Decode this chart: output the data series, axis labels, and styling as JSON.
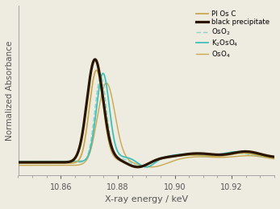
{
  "title": "",
  "xlabel": "X-ray energy / keV",
  "ylabel": "Normalized Absorbance",
  "xlim": [
    10.845,
    10.935
  ],
  "ylim": [
    -0.08,
    1.5
  ],
  "xticks": [
    10.86,
    10.88,
    10.9,
    10.92
  ],
  "background_color": "#eeebe0",
  "series_colors": {
    "PI_Os_C": "#c8a850",
    "black_precipitate": "#2a1500",
    "OsO2": "#88d4c8",
    "K2OsO4": "#40bfb8",
    "OsO4": "#c8a850"
  },
  "legend_labels": [
    "PI Os C",
    "black precipitate",
    "OsO$_2$",
    "K$_2$OsO$_4$",
    "OsO$_4$"
  ]
}
